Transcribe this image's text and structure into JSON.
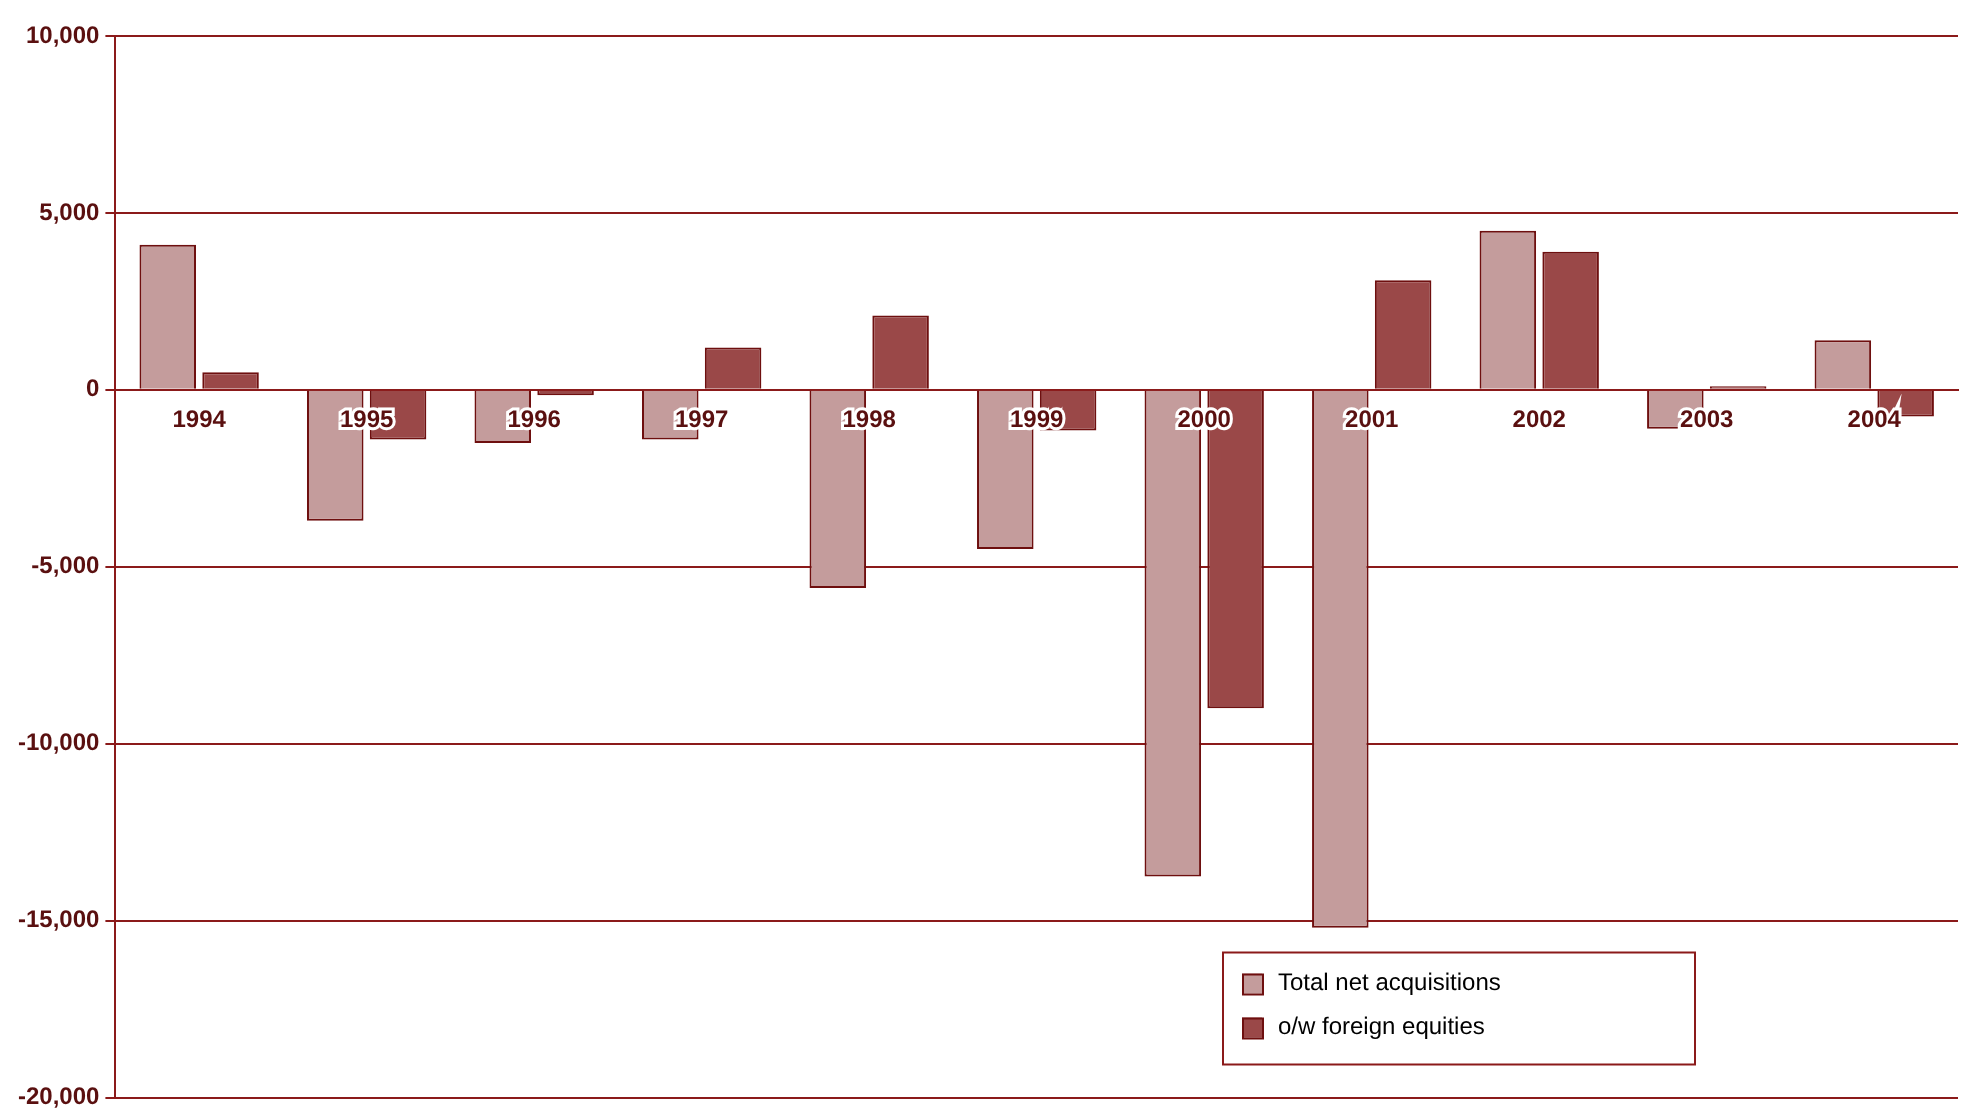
{
  "chart_data": {
    "type": "bar",
    "categories": [
      "1994",
      "1995",
      "1996",
      "1997",
      "1998",
      "1999",
      "2000",
      "2001",
      "2002",
      "2003",
      "2004"
    ],
    "series": [
      {
        "name": "Total net acquisitions",
        "color": "#c49c9c",
        "values": [
          4100,
          -3700,
          -1500,
          -1400,
          -5600,
          -4500,
          -13750,
          -15200,
          4500,
          -1100,
          1400
        ]
      },
      {
        "name": "o/w foreign equities",
        "color": "#9a4848",
        "values": [
          500,
          -1400,
          -150,
          1200,
          2100,
          -1150,
          -9000,
          3100,
          3900,
          100,
          -750
        ]
      }
    ],
    "ylim": [
      -20000,
      10000
    ],
    "yticks": [
      {
        "value": -20000,
        "label": "-20,000"
      },
      {
        "value": -15000,
        "label": "-15,000"
      },
      {
        "value": -10000,
        "label": "-10,000"
      },
      {
        "value": -5000,
        "label": "-5,000"
      },
      0,
      {
        "value": 5000,
        "label": "5,000"
      },
      {
        "value": 10000,
        "label": "10,000"
      }
    ],
    "grid": "y",
    "legend": "bottom right"
  }
}
